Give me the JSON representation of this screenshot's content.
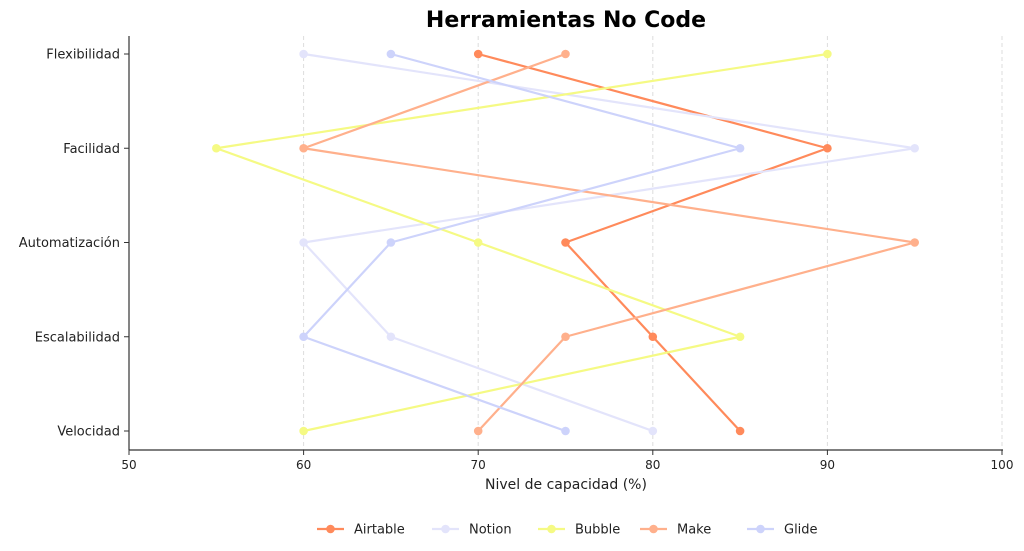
{
  "chart_data": {
    "type": "line",
    "title": "Herramientas No Code",
    "xlabel": "Nivel de capacidad (%)",
    "ylabel": "",
    "orientation": "horizontal-categories",
    "categories": [
      "Flexibilidad",
      "Facilidad",
      "Automatización",
      "Escalabilidad",
      "Velocidad"
    ],
    "xlim": [
      50,
      100
    ],
    "xticks": [
      50,
      60,
      70,
      80,
      90,
      100
    ],
    "grid": {
      "x": true,
      "style": "dashed",
      "color": "#dddddd"
    },
    "legend_position": "bottom-center",
    "series": [
      {
        "name": "Airtable",
        "color": "#FF8A5B",
        "values": [
          70,
          90,
          75,
          80,
          85
        ]
      },
      {
        "name": "Notion",
        "color": "#E3E4FB",
        "values": [
          60,
          95,
          60,
          65,
          80
        ]
      },
      {
        "name": "Bubble",
        "color": "#F5FA84",
        "values": [
          90,
          55,
          70,
          85,
          60
        ]
      },
      {
        "name": "Make",
        "color": "#FFB08C",
        "values": [
          75,
          60,
          95,
          75,
          70
        ]
      },
      {
        "name": "Glide",
        "color": "#CDD3FB",
        "values": [
          65,
          85,
          65,
          60,
          75
        ]
      }
    ]
  }
}
